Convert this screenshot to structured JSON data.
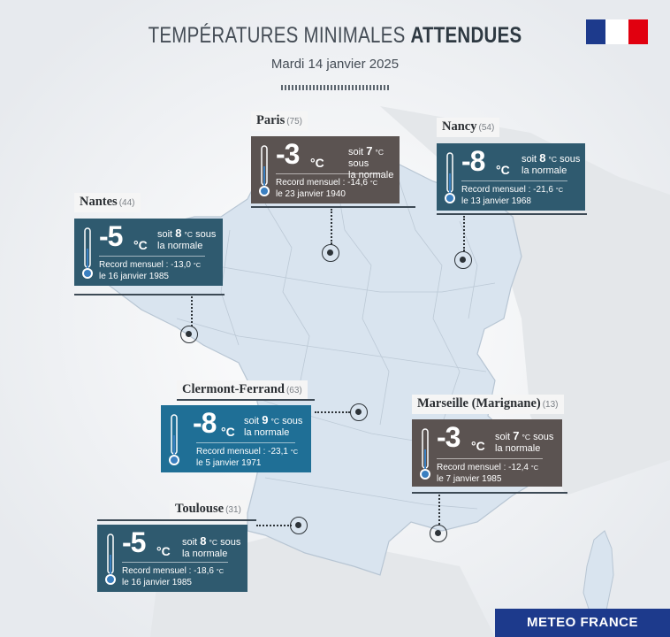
{
  "header": {
    "title_light": "TEMPÉRATURES MINIMALES",
    "title_bold": "ATTENDUES",
    "date": "Mardi 14 janvier 2025"
  },
  "brand": "METEO FRANCE",
  "colors": {
    "brown": "#5b5351",
    "slate": "#2f5a6f",
    "blue": "#1f6f96",
    "map": "#d9e4ef"
  },
  "cities": {
    "paris": {
      "name": "Paris",
      "dep": "(75)",
      "temp": "-3",
      "unit": "°C",
      "soit": "soit",
      "delta": "7",
      "delta_unit": "°C",
      "sous": "sous",
      "normale": "la normale",
      "record_label": "Record mensuel :",
      "record_value": "-14,6",
      "record_unit": "°C",
      "record_date": "le 23 janvier 1940"
    },
    "nancy": {
      "name": "Nancy",
      "dep": "(54)",
      "temp": "-8",
      "unit": "°C",
      "soit": "soit",
      "delta": "8",
      "delta_unit": "°C",
      "sous": "sous",
      "normale": "la normale",
      "record_label": "Record mensuel :",
      "record_value": "-21,6",
      "record_unit": "°C",
      "record_date": "le 13 janvier 1968"
    },
    "nantes": {
      "name": "Nantes",
      "dep": "(44)",
      "temp": "-5",
      "unit": "°C",
      "soit": "soit",
      "delta": "8",
      "delta_unit": "°C",
      "sous": "sous",
      "normale": "la normale",
      "record_label": "Record mensuel :",
      "record_value": "-13,0",
      "record_unit": "°C",
      "record_date": "le 16 janvier 1985"
    },
    "clermont": {
      "name": "Clermont-Ferrand",
      "dep": "(63)",
      "temp": "-8",
      "unit": "°C",
      "soit": "soit",
      "delta": "9",
      "delta_unit": "°C",
      "sous": "sous",
      "normale": "la normale",
      "record_label": "Record mensuel :",
      "record_value": "-23,1",
      "record_unit": "°C",
      "record_date": "le 5 janvier 1971"
    },
    "marseille": {
      "name": "Marseille (Marignane)",
      "dep": "(13)",
      "temp": "-3",
      "unit": "°C",
      "soit": "soit",
      "delta": "7",
      "delta_unit": "°C",
      "sous": "sous",
      "normale": "la normale",
      "record_label": "Record mensuel :",
      "record_value": "-12,4",
      "record_unit": "°C",
      "record_date": "le 7 janvier 1985"
    },
    "toulouse": {
      "name": "Toulouse",
      "dep": "(31)",
      "temp": "-5",
      "unit": "°C",
      "soit": "soit",
      "delta": "8",
      "delta_unit": "°C",
      "sous": "sous",
      "normale": "la normale",
      "record_label": "Record mensuel :",
      "record_value": "-18,6",
      "record_unit": "°C",
      "record_date": "le 16 janvier 1985"
    }
  }
}
